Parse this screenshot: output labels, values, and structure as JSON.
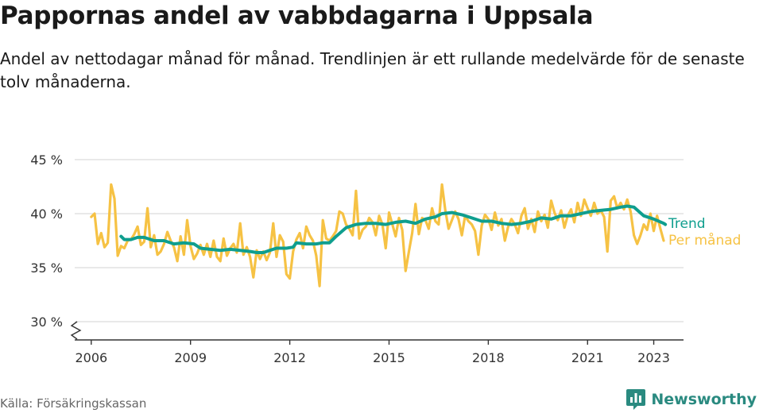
{
  "chart_data": {
    "type": "line",
    "title": "Pappornas andel av vabbdagarna i Uppsala",
    "subtitle": "Andel av nettodagar månad för månad. Trendlinjen är ett rullande medelvärde för de senaste tolv månaderna.",
    "xlabel": "",
    "ylabel": "",
    "xlim": [
      2005.5,
      2023.9
    ],
    "ylim": [
      30,
      45
    ],
    "axis_break": true,
    "y_ticks": [
      {
        "value": 30,
        "label": "30 %"
      },
      {
        "value": 35,
        "label": "35 %"
      },
      {
        "value": 40,
        "label": "40 %"
      },
      {
        "value": 45,
        "label": "45 %"
      }
    ],
    "x_ticks": [
      {
        "value": 2006,
        "label": "2006"
      },
      {
        "value": 2009,
        "label": "2009"
      },
      {
        "value": 2012,
        "label": "2012"
      },
      {
        "value": 2015,
        "label": "2015"
      },
      {
        "value": 2018,
        "label": "2018"
      },
      {
        "value": 2021,
        "label": "2021"
      },
      {
        "value": 2023,
        "label": "2023"
      }
    ],
    "grid": true,
    "series": [
      {
        "name": "Per månad",
        "color": "#f6c244",
        "points": [
          [
            2006.0,
            39.7
          ],
          [
            2006.1,
            40.0
          ],
          [
            2006.2,
            37.2
          ],
          [
            2006.3,
            38.2
          ],
          [
            2006.4,
            36.9
          ],
          [
            2006.5,
            37.3
          ],
          [
            2006.6,
            42.7
          ],
          [
            2006.7,
            41.4
          ],
          [
            2006.8,
            36.1
          ],
          [
            2006.9,
            37.0
          ],
          [
            2007.0,
            36.8
          ],
          [
            2007.1,
            37.5
          ],
          [
            2007.2,
            37.6
          ],
          [
            2007.3,
            38.1
          ],
          [
            2007.4,
            38.8
          ],
          [
            2007.5,
            37.1
          ],
          [
            2007.6,
            37.4
          ],
          [
            2007.7,
            40.5
          ],
          [
            2007.8,
            36.9
          ],
          [
            2007.9,
            38.0
          ],
          [
            2008.0,
            36.2
          ],
          [
            2008.1,
            36.5
          ],
          [
            2008.2,
            37.2
          ],
          [
            2008.3,
            38.3
          ],
          [
            2008.4,
            37.5
          ],
          [
            2008.5,
            36.9
          ],
          [
            2008.6,
            35.6
          ],
          [
            2008.7,
            37.9
          ],
          [
            2008.8,
            36.2
          ],
          [
            2008.9,
            39.4
          ],
          [
            2009.0,
            37.0
          ],
          [
            2009.1,
            35.8
          ],
          [
            2009.2,
            36.3
          ],
          [
            2009.3,
            37.1
          ],
          [
            2009.4,
            36.2
          ],
          [
            2009.5,
            37.2
          ],
          [
            2009.6,
            36.0
          ],
          [
            2009.7,
            37.5
          ],
          [
            2009.8,
            36.0
          ],
          [
            2009.9,
            35.6
          ],
          [
            2010.0,
            37.7
          ],
          [
            2010.1,
            36.1
          ],
          [
            2010.2,
            36.8
          ],
          [
            2010.3,
            37.2
          ],
          [
            2010.4,
            36.4
          ],
          [
            2010.5,
            39.1
          ],
          [
            2010.6,
            36.2
          ],
          [
            2010.7,
            36.9
          ],
          [
            2010.8,
            36.0
          ],
          [
            2010.9,
            34.1
          ],
          [
            2011.0,
            36.6
          ],
          [
            2011.1,
            35.8
          ],
          [
            2011.2,
            36.5
          ],
          [
            2011.3,
            35.7
          ],
          [
            2011.4,
            36.4
          ],
          [
            2011.5,
            39.1
          ],
          [
            2011.6,
            36.0
          ],
          [
            2011.7,
            38.0
          ],
          [
            2011.8,
            37.4
          ],
          [
            2011.9,
            34.4
          ],
          [
            2012.0,
            34.0
          ],
          [
            2012.1,
            36.5
          ],
          [
            2012.2,
            37.6
          ],
          [
            2012.3,
            38.2
          ],
          [
            2012.4,
            36.8
          ],
          [
            2012.5,
            38.8
          ],
          [
            2012.6,
            38.0
          ],
          [
            2012.7,
            37.5
          ],
          [
            2012.8,
            36.1
          ],
          [
            2012.9,
            33.3
          ],
          [
            2013.0,
            39.4
          ],
          [
            2013.1,
            37.7
          ],
          [
            2013.2,
            37.5
          ],
          [
            2013.3,
            37.9
          ],
          [
            2013.4,
            38.4
          ],
          [
            2013.5,
            40.2
          ],
          [
            2013.6,
            40.0
          ],
          [
            2013.7,
            39.0
          ],
          [
            2013.8,
            38.6
          ],
          [
            2013.9,
            38.0
          ],
          [
            2014.0,
            42.1
          ],
          [
            2014.1,
            37.7
          ],
          [
            2014.2,
            38.5
          ],
          [
            2014.3,
            38.8
          ],
          [
            2014.4,
            39.6
          ],
          [
            2014.5,
            39.2
          ],
          [
            2014.6,
            38.0
          ],
          [
            2014.7,
            39.8
          ],
          [
            2014.8,
            39.0
          ],
          [
            2014.9,
            36.8
          ],
          [
            2015.0,
            40.1
          ],
          [
            2015.1,
            39.0
          ],
          [
            2015.2,
            37.9
          ],
          [
            2015.3,
            39.6
          ],
          [
            2015.4,
            38.5
          ],
          [
            2015.5,
            34.7
          ],
          [
            2015.6,
            36.5
          ],
          [
            2015.7,
            38.2
          ],
          [
            2015.8,
            40.9
          ],
          [
            2015.9,
            38.1
          ],
          [
            2016.0,
            39.6
          ],
          [
            2016.1,
            39.4
          ],
          [
            2016.2,
            38.6
          ],
          [
            2016.3,
            40.5
          ],
          [
            2016.4,
            39.3
          ],
          [
            2016.5,
            39.0
          ],
          [
            2016.6,
            42.7
          ],
          [
            2016.7,
            40.3
          ],
          [
            2016.8,
            38.6
          ],
          [
            2016.9,
            39.4
          ],
          [
            2017.0,
            40.2
          ],
          [
            2017.1,
            39.5
          ],
          [
            2017.2,
            38.0
          ],
          [
            2017.3,
            39.8
          ],
          [
            2017.4,
            39.3
          ],
          [
            2017.5,
            39.0
          ],
          [
            2017.6,
            38.4
          ],
          [
            2017.7,
            36.2
          ],
          [
            2017.8,
            38.9
          ],
          [
            2017.9,
            39.9
          ],
          [
            2018.0,
            39.5
          ],
          [
            2018.1,
            38.5
          ],
          [
            2018.2,
            40.1
          ],
          [
            2018.3,
            38.9
          ],
          [
            2018.4,
            39.5
          ],
          [
            2018.5,
            37.5
          ],
          [
            2018.6,
            38.8
          ],
          [
            2018.7,
            39.5
          ],
          [
            2018.8,
            39.0
          ],
          [
            2018.9,
            38.2
          ],
          [
            2019.0,
            39.8
          ],
          [
            2019.1,
            40.5
          ],
          [
            2019.2,
            38.6
          ],
          [
            2019.3,
            39.5
          ],
          [
            2019.4,
            38.3
          ],
          [
            2019.5,
            40.2
          ],
          [
            2019.6,
            39.3
          ],
          [
            2019.7,
            39.9
          ],
          [
            2019.8,
            38.7
          ],
          [
            2019.9,
            41.2
          ],
          [
            2020.0,
            40.1
          ],
          [
            2020.1,
            39.4
          ],
          [
            2020.2,
            40.3
          ],
          [
            2020.3,
            38.7
          ],
          [
            2020.4,
            39.8
          ],
          [
            2020.5,
            40.4
          ],
          [
            2020.6,
            39.2
          ],
          [
            2020.7,
            41.0
          ],
          [
            2020.8,
            39.8
          ],
          [
            2020.9,
            41.3
          ],
          [
            2021.0,
            40.5
          ],
          [
            2021.1,
            39.8
          ],
          [
            2021.2,
            41.0
          ],
          [
            2021.3,
            40.0
          ],
          [
            2021.4,
            40.3
          ],
          [
            2021.5,
            39.7
          ],
          [
            2021.6,
            36.5
          ],
          [
            2021.7,
            41.2
          ],
          [
            2021.8,
            41.6
          ],
          [
            2021.9,
            40.5
          ],
          [
            2022.0,
            41.0
          ],
          [
            2022.1,
            40.4
          ],
          [
            2022.2,
            41.3
          ],
          [
            2022.3,
            40.2
          ],
          [
            2022.4,
            38.0
          ],
          [
            2022.5,
            37.2
          ],
          [
            2022.6,
            38.0
          ],
          [
            2022.7,
            39.0
          ],
          [
            2022.8,
            38.5
          ],
          [
            2022.9,
            40.0
          ],
          [
            2023.0,
            38.4
          ],
          [
            2023.1,
            39.8
          ],
          [
            2023.2,
            38.6
          ],
          [
            2023.3,
            37.5
          ]
        ]
      },
      {
        "name": "Trend",
        "color": "#0f9e8e",
        "points": [
          [
            2006.9,
            37.9
          ],
          [
            2007.0,
            37.6
          ],
          [
            2007.2,
            37.6
          ],
          [
            2007.4,
            37.8
          ],
          [
            2007.6,
            37.8
          ],
          [
            2007.9,
            37.5
          ],
          [
            2008.2,
            37.5
          ],
          [
            2008.5,
            37.2
          ],
          [
            2008.8,
            37.3
          ],
          [
            2009.1,
            37.2
          ],
          [
            2009.3,
            36.8
          ],
          [
            2009.6,
            36.7
          ],
          [
            2009.9,
            36.6
          ],
          [
            2010.2,
            36.7
          ],
          [
            2010.5,
            36.6
          ],
          [
            2010.8,
            36.5
          ],
          [
            2011.0,
            36.4
          ],
          [
            2011.2,
            36.4
          ],
          [
            2011.4,
            36.6
          ],
          [
            2011.6,
            36.8
          ],
          [
            2011.9,
            36.8
          ],
          [
            2012.1,
            36.9
          ],
          [
            2012.2,
            37.3
          ],
          [
            2012.5,
            37.2
          ],
          [
            2012.8,
            37.2
          ],
          [
            2013.0,
            37.3
          ],
          [
            2013.2,
            37.3
          ],
          [
            2013.4,
            37.9
          ],
          [
            2013.7,
            38.7
          ],
          [
            2014.0,
            39.0
          ],
          [
            2014.3,
            39.1
          ],
          [
            2014.6,
            39.1
          ],
          [
            2014.9,
            39.0
          ],
          [
            2015.2,
            39.2
          ],
          [
            2015.5,
            39.3
          ],
          [
            2015.8,
            39.1
          ],
          [
            2016.1,
            39.5
          ],
          [
            2016.4,
            39.7
          ],
          [
            2016.6,
            40.0
          ],
          [
            2016.9,
            40.1
          ],
          [
            2017.2,
            39.9
          ],
          [
            2017.5,
            39.6
          ],
          [
            2017.8,
            39.3
          ],
          [
            2018.1,
            39.3
          ],
          [
            2018.4,
            39.1
          ],
          [
            2018.7,
            39.0
          ],
          [
            2019.0,
            39.1
          ],
          [
            2019.3,
            39.3
          ],
          [
            2019.6,
            39.6
          ],
          [
            2019.9,
            39.5
          ],
          [
            2020.2,
            39.8
          ],
          [
            2020.5,
            39.8
          ],
          [
            2020.8,
            40.0
          ],
          [
            2021.1,
            40.2
          ],
          [
            2021.4,
            40.3
          ],
          [
            2021.7,
            40.4
          ],
          [
            2022.0,
            40.6
          ],
          [
            2022.2,
            40.7
          ],
          [
            2022.4,
            40.6
          ],
          [
            2022.7,
            39.8
          ],
          [
            2023.0,
            39.5
          ],
          [
            2023.3,
            39.1
          ],
          [
            2023.35,
            39.0
          ]
        ]
      }
    ]
  },
  "footer": {
    "source": "Källa: Försäkringskassan",
    "brand": "Newsworthy"
  }
}
